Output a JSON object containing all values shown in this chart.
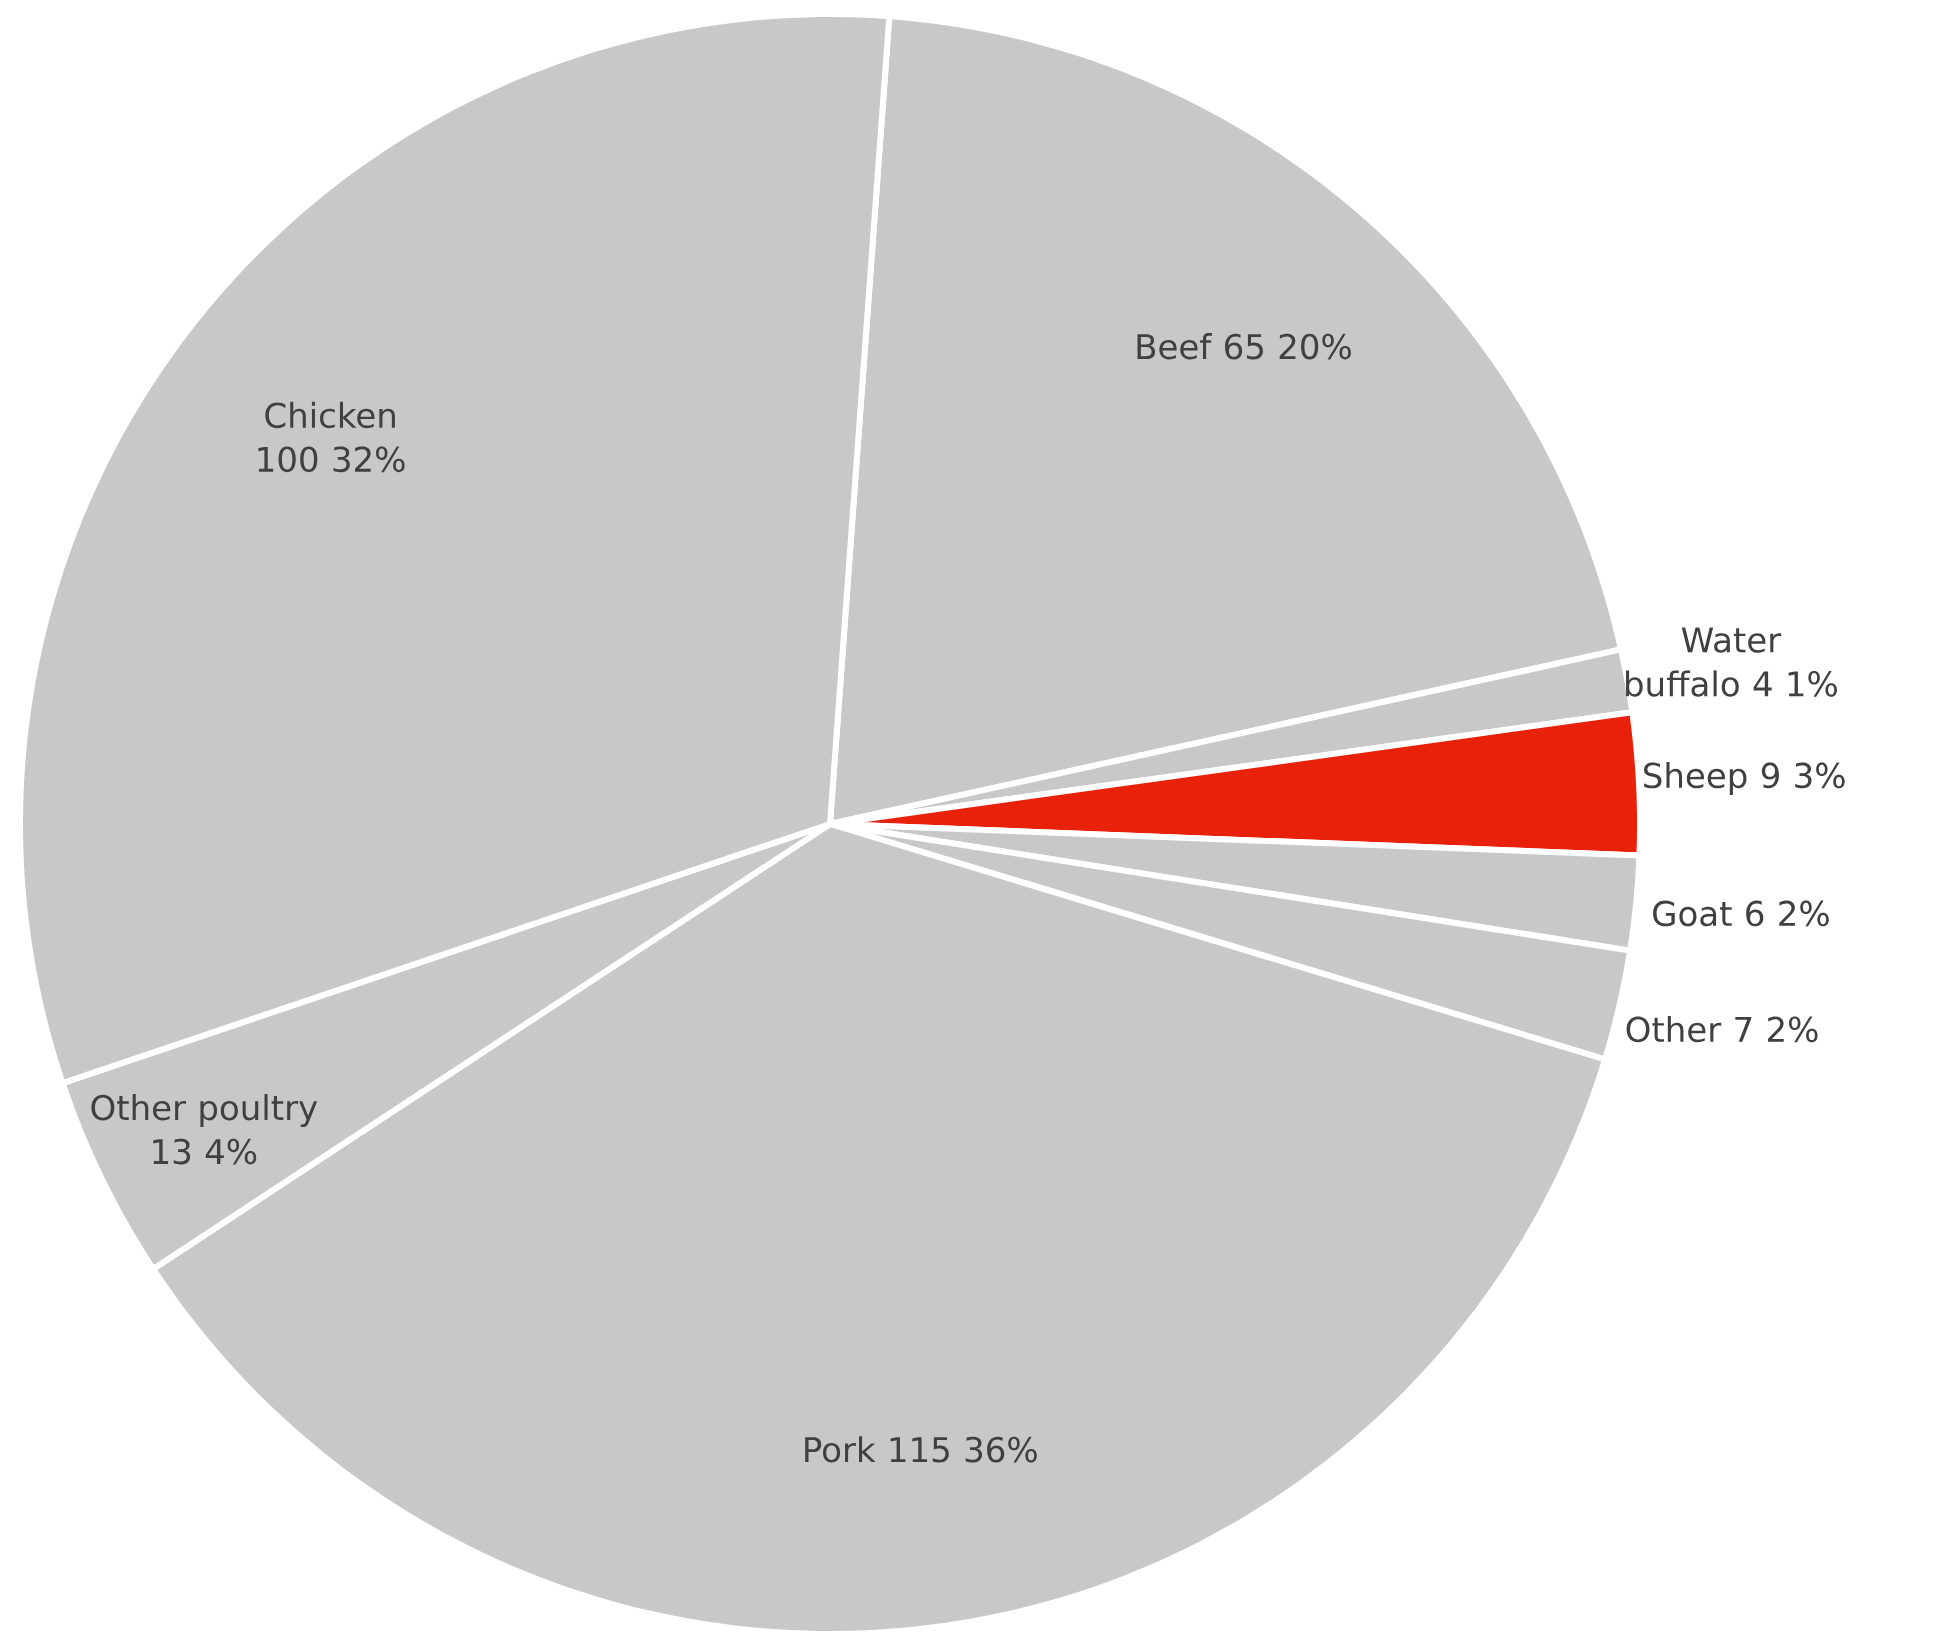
{
  "chart_data": {
    "type": "pie",
    "categories": [
      "Beef",
      "Water buffalo",
      "Sheep",
      "Goat",
      "Other",
      "Pork",
      "Other poultry",
      "Chicken"
    ],
    "values": [
      65,
      4,
      9,
      6,
      7,
      115,
      13,
      100
    ],
    "value_labels": [
      "65 20%",
      "4 1%",
      "9 3%",
      "6 2%",
      "7 2%",
      "115 36%",
      "13 4%",
      "100 32%"
    ],
    "colors": [
      "#c8c8c8",
      "#c8c8c8",
      "#e8210a",
      "#c8c8c8",
      "#c8c8c8",
      "#c8c8c8",
      "#c8c8c8",
      "#c8c8c8"
    ]
  }
}
